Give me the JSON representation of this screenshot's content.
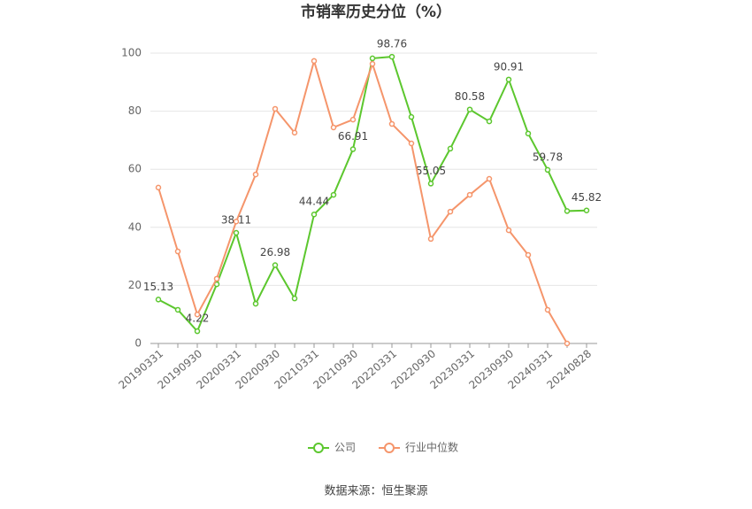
{
  "chart_data": {
    "type": "line",
    "title": "市销率历史分位（%）",
    "categories": [
      "20190331",
      null,
      "20190930",
      null,
      "20200331",
      null,
      "20200930",
      null,
      "20210331",
      null,
      "20210930",
      null,
      "20220331",
      null,
      "20220930",
      null,
      "20230331",
      null,
      "20230930",
      null,
      "20240331",
      null,
      "20240828"
    ],
    "series": [
      {
        "name": "公司",
        "color": "#5cc72e",
        "values": [
          15.13,
          11.6,
          4.22,
          20.4,
          38.11,
          13.7,
          26.98,
          15.5,
          44.44,
          51.2,
          66.91,
          98.2,
          98.76,
          78,
          55.05,
          67.1,
          80.58,
          76.5,
          90.91,
          72.3,
          59.78,
          45.6,
          45.82
        ],
        "value_labels": [
          "15.13",
          null,
          "4.22",
          null,
          "38.11",
          null,
          "26.98",
          null,
          "44.44",
          null,
          "66.91",
          null,
          "98.76",
          null,
          "55.05",
          null,
          "80.58",
          null,
          "90.91",
          null,
          "59.78",
          null,
          "45.82"
        ]
      },
      {
        "name": "行业中位数",
        "color": "#f5956b",
        "values": [
          53.7,
          31.7,
          10,
          22.3,
          42,
          58.2,
          80.8,
          72.6,
          97.3,
          74.4,
          77.1,
          96.3,
          75.6,
          68.9,
          36,
          45.4,
          51.2,
          56.7,
          39,
          30.5,
          11.6,
          0,
          null
        ]
      }
    ],
    "ylim": [
      0,
      100
    ],
    "yticks": [
      0,
      20,
      40,
      60,
      80,
      100
    ],
    "grid": true,
    "legend": "bottom",
    "source": "数据来源：恒生聚源"
  }
}
